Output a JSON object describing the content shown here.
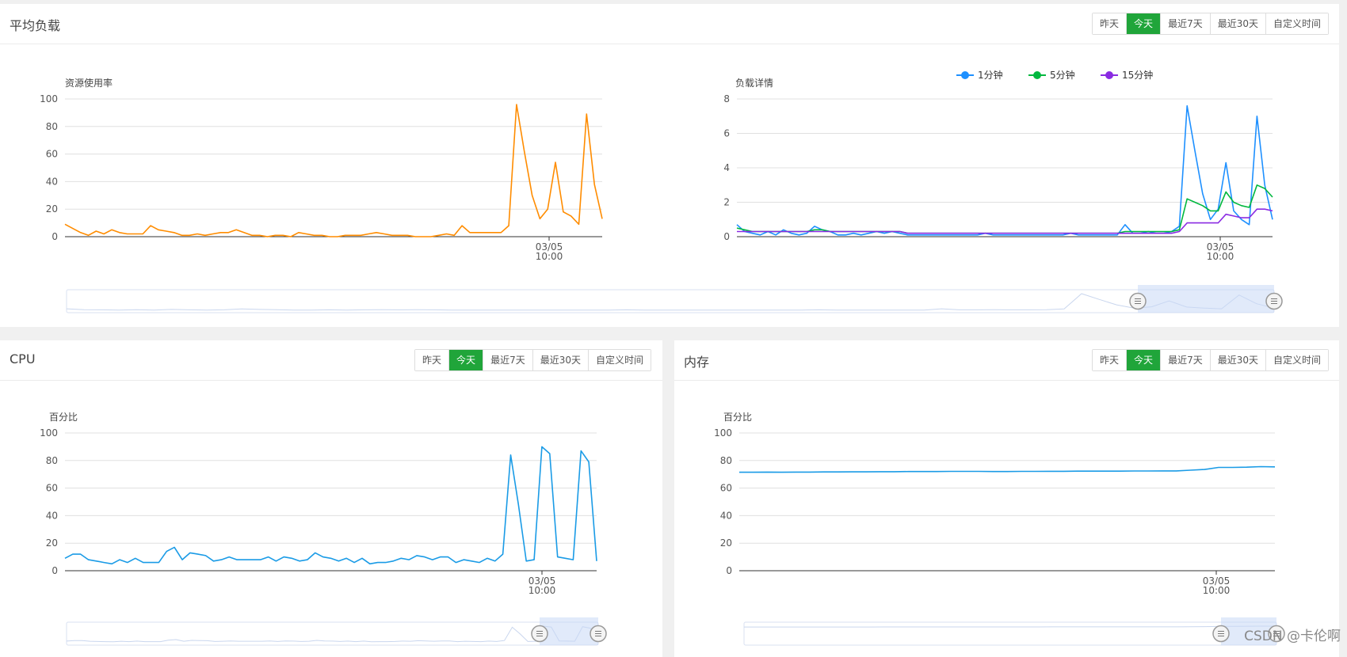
{
  "panels": {
    "load": {
      "title": "平均负载",
      "buttons": [
        "昨天",
        "今天",
        "最近7天",
        "最近30天",
        "自定义时间"
      ],
      "active": "今天"
    },
    "cpu": {
      "title": "CPU",
      "buttons": [
        "昨天",
        "今天",
        "最近7天",
        "最近30天",
        "自定义时间"
      ],
      "active": "今天"
    },
    "mem": {
      "title": "内存",
      "buttons": [
        "昨天",
        "今天",
        "最近7天",
        "最近30天",
        "自定义时间"
      ],
      "active": "今天"
    }
  },
  "watermark": "CSDN @卡伦啊",
  "colors": {
    "accent": "#20a53a",
    "orange": "#ff8c00",
    "blue": "#1e90ff",
    "green": "#00b83f",
    "purple": "#8a2be2",
    "cpu_blue": "#1a9be6"
  },
  "chart_data": [
    {
      "id": "load_usage",
      "type": "line",
      "title": "资源使用率",
      "ylim": [
        0,
        100
      ],
      "yticks": [
        0,
        20,
        40,
        60,
        80,
        100
      ],
      "xtick_label": [
        "03/05",
        "10:00"
      ],
      "series": [
        {
          "values": [
            9,
            6,
            3,
            1,
            4,
            2,
            5,
            3,
            2,
            2,
            2,
            8,
            5,
            4,
            3,
            1,
            1,
            2,
            1,
            2,
            3,
            3,
            5,
            3,
            1,
            1,
            0,
            1,
            1,
            0,
            3,
            2,
            1,
            1,
            0,
            0,
            1,
            1,
            1,
            2,
            3,
            2,
            1,
            1,
            1,
            0,
            0,
            0,
            1,
            2,
            1,
            8,
            3,
            3,
            3,
            3,
            3,
            8,
            96,
            62,
            30,
            13,
            20,
            54,
            18,
            15,
            9,
            89,
            38,
            13
          ],
          "color": "#ff8c00"
        }
      ]
    },
    {
      "id": "load_detail",
      "type": "line",
      "title": "负载详情",
      "ylim": [
        0,
        8
      ],
      "yticks": [
        0,
        2,
        4,
        6,
        8
      ],
      "xtick_label": [
        "03/05",
        "10:00"
      ],
      "legend": [
        "1分钟",
        "5分钟",
        "15分钟"
      ],
      "legend_position": "top-center",
      "series": [
        {
          "name": "1分钟",
          "color": "#1e90ff",
          "values": [
            0.7,
            0.3,
            0.2,
            0.1,
            0.3,
            0.1,
            0.4,
            0.2,
            0.1,
            0.2,
            0.6,
            0.4,
            0.3,
            0.1,
            0.1,
            0.2,
            0.1,
            0.2,
            0.3,
            0.2,
            0.3,
            0.2,
            0.1,
            0.1,
            0.1,
            0.1,
            0.1,
            0.1,
            0.1,
            0.1,
            0.1,
            0.1,
            0.2,
            0.1,
            0.1,
            0.1,
            0.1,
            0.1,
            0.1,
            0.1,
            0.1,
            0.1,
            0.1,
            0.2,
            0.1,
            0.1,
            0.1,
            0.1,
            0.1,
            0.1,
            0.7,
            0.2,
            0.2,
            0.3,
            0.2,
            0.2,
            0.3,
            0.6,
            7.6,
            5.0,
            2.5,
            1.0,
            1.6,
            4.3,
            1.5,
            1.0,
            0.7,
            7.0,
            3.0,
            1.0
          ]
        },
        {
          "name": "5分钟",
          "color": "#00b83f",
          "values": [
            0.5,
            0.4,
            0.3,
            0.3,
            0.3,
            0.3,
            0.3,
            0.3,
            0.3,
            0.3,
            0.4,
            0.4,
            0.3,
            0.3,
            0.3,
            0.3,
            0.3,
            0.3,
            0.3,
            0.3,
            0.3,
            0.3,
            0.2,
            0.2,
            0.2,
            0.2,
            0.2,
            0.2,
            0.2,
            0.2,
            0.2,
            0.2,
            0.2,
            0.2,
            0.2,
            0.2,
            0.2,
            0.2,
            0.2,
            0.2,
            0.2,
            0.2,
            0.2,
            0.2,
            0.2,
            0.2,
            0.2,
            0.2,
            0.2,
            0.2,
            0.3,
            0.3,
            0.3,
            0.3,
            0.3,
            0.3,
            0.3,
            0.4,
            2.2,
            2.0,
            1.8,
            1.5,
            1.5,
            2.6,
            2.0,
            1.8,
            1.7,
            3.0,
            2.8,
            2.3
          ]
        },
        {
          "name": "15分钟",
          "color": "#8a2be2",
          "values": [
            0.3,
            0.3,
            0.3,
            0.3,
            0.3,
            0.3,
            0.3,
            0.3,
            0.3,
            0.3,
            0.3,
            0.3,
            0.3,
            0.3,
            0.3,
            0.3,
            0.3,
            0.3,
            0.3,
            0.3,
            0.3,
            0.3,
            0.2,
            0.2,
            0.2,
            0.2,
            0.2,
            0.2,
            0.2,
            0.2,
            0.2,
            0.2,
            0.2,
            0.2,
            0.2,
            0.2,
            0.2,
            0.2,
            0.2,
            0.2,
            0.2,
            0.2,
            0.2,
            0.2,
            0.2,
            0.2,
            0.2,
            0.2,
            0.2,
            0.2,
            0.2,
            0.2,
            0.2,
            0.2,
            0.2,
            0.2,
            0.2,
            0.3,
            0.8,
            0.8,
            0.8,
            0.8,
            0.8,
            1.3,
            1.2,
            1.1,
            1.1,
            1.6,
            1.6,
            1.5
          ]
        }
      ]
    },
    {
      "id": "cpu",
      "type": "line",
      "title": "百分比",
      "ylim": [
        0,
        100
      ],
      "yticks": [
        0,
        20,
        40,
        60,
        80,
        100
      ],
      "xtick_label": [
        "03/05",
        "10:00"
      ],
      "series": [
        {
          "color": "#1a9be6",
          "values": [
            9,
            12,
            12,
            8,
            7,
            6,
            5,
            8,
            6,
            9,
            6,
            6,
            6,
            14,
            17,
            8,
            13,
            12,
            11,
            7,
            8,
            10,
            8,
            8,
            8,
            8,
            10,
            7,
            10,
            9,
            7,
            8,
            13,
            10,
            9,
            7,
            9,
            6,
            9,
            5,
            6,
            6,
            7,
            9,
            8,
            11,
            10,
            8,
            10,
            10,
            6,
            8,
            7,
            6,
            9,
            7,
            12,
            84,
            48,
            7,
            8,
            90,
            85,
            10,
            9,
            8,
            87,
            79,
            7
          ]
        }
      ]
    },
    {
      "id": "memory",
      "type": "line",
      "title": "百分比",
      "ylim": [
        0,
        100
      ],
      "yticks": [
        0,
        20,
        40,
        60,
        80,
        100
      ],
      "xtick_label": [
        "03/05",
        "10:00"
      ],
      "series": [
        {
          "color": "#1a9be6",
          "values": [
            71.5,
            71.5,
            71.6,
            71.5,
            71.6,
            71.6,
            71.7,
            71.7,
            71.8,
            71.8,
            71.9,
            71.9,
            72.0,
            72.0,
            72.0,
            72.1,
            72.1,
            72.1,
            72.0,
            72.0,
            72.1,
            72.1,
            72.2,
            72.2,
            72.3,
            72.3,
            72.3,
            72.3,
            72.4,
            72.4,
            72.5,
            72.5,
            73.0,
            73.5,
            75.0,
            75.0,
            75.2,
            75.6,
            75.4
          ]
        }
      ]
    }
  ]
}
